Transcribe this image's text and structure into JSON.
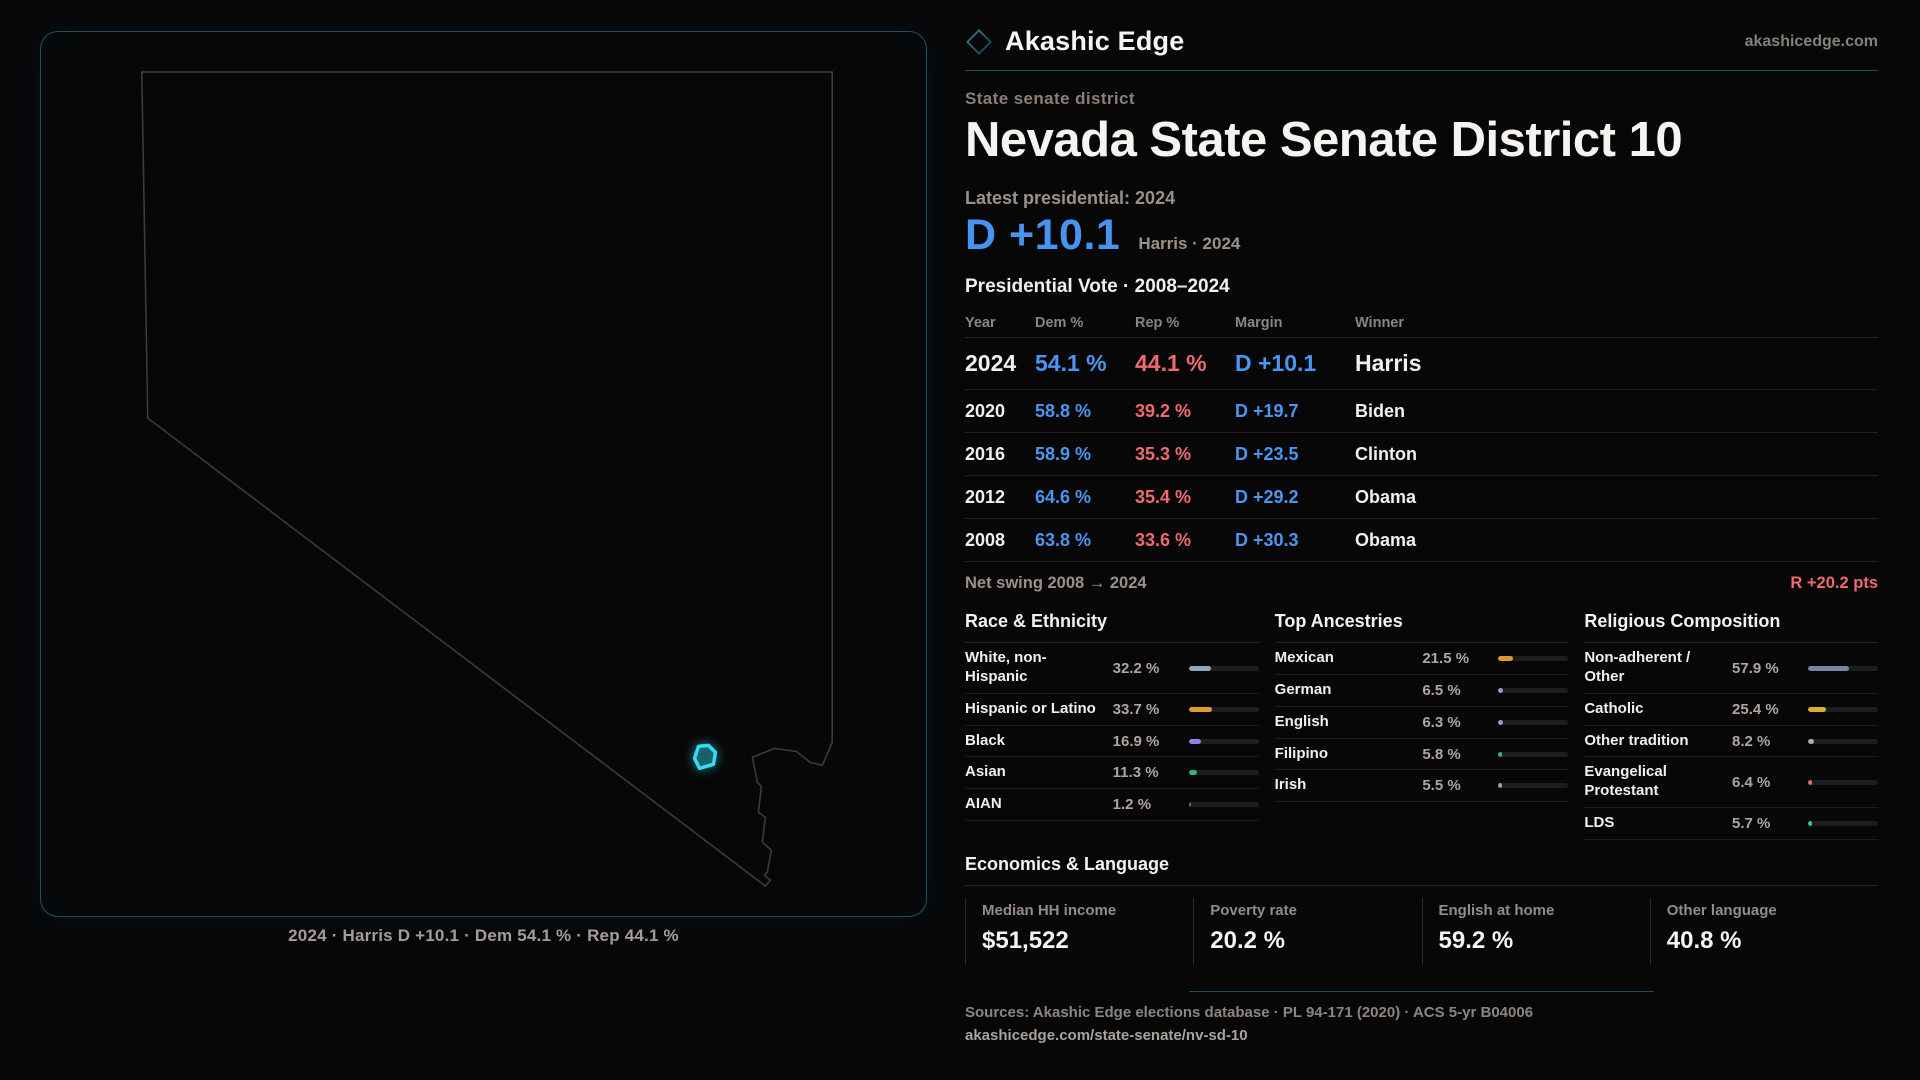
{
  "brand": {
    "name": "Akashic Edge",
    "domain": "akashicedge.com",
    "logo_icon": "diamond-icon"
  },
  "page": {
    "kicker": "State senate district",
    "title": "Nevada State Senate District 10",
    "latest_label": "Latest presidential: 2024",
    "headline_margin": "D +10.1",
    "headline_context": "Harris · 2024"
  },
  "map": {
    "caption": "2024 · Harris D +10.1 · Dem 54.1 % · Rep 44.1 %",
    "district_color": "#35dcf2",
    "outline_color": "#3b3b3e",
    "panel_border_color": "#1d515e"
  },
  "vote_table": {
    "title": "Presidential Vote · 2008–2024",
    "columns": [
      "Year",
      "Dem %",
      "Rep %",
      "Margin",
      "Winner"
    ],
    "rows": [
      {
        "year": "2024",
        "dem": "54.1 %",
        "rep": "44.1 %",
        "margin": "D +10.1",
        "winner": "Harris",
        "emphasis": true
      },
      {
        "year": "2020",
        "dem": "58.8 %",
        "rep": "39.2 %",
        "margin": "D +19.7",
        "winner": "Biden",
        "emphasis": false
      },
      {
        "year": "2016",
        "dem": "58.9 %",
        "rep": "35.3 %",
        "margin": "D +23.5",
        "winner": "Clinton",
        "emphasis": false
      },
      {
        "year": "2012",
        "dem": "64.6 %",
        "rep": "35.4 %",
        "margin": "D +29.2",
        "winner": "Obama",
        "emphasis": false
      },
      {
        "year": "2008",
        "dem": "63.8 %",
        "rep": "33.6 %",
        "margin": "D +30.3",
        "winner": "Obama",
        "emphasis": false
      }
    ],
    "net_swing_label": "Net swing 2008 → 2024",
    "net_swing_value": "R +20.2 pts"
  },
  "demographics": [
    {
      "title": "Race & Ethnicity",
      "rows": [
        {
          "label": "White, non-Hispanic",
          "value": "32.2 %",
          "pct": 32.2,
          "color": "#8fa6bf"
        },
        {
          "label": "Hispanic or Latino",
          "value": "33.7 %",
          "pct": 33.7,
          "color": "#dd9a2e"
        },
        {
          "label": "Black",
          "value": "16.9 %",
          "pct": 16.9,
          "color": "#8f7fe8"
        },
        {
          "label": "Asian",
          "value": "11.3 %",
          "pct": 11.3,
          "color": "#31b389"
        },
        {
          "label": "AIAN",
          "value": "1.2 %",
          "pct": 1.2,
          "color": "#a35b25"
        }
      ]
    },
    {
      "title": "Top Ancestries",
      "rows": [
        {
          "label": "Mexican",
          "value": "21.5 %",
          "pct": 21.5,
          "color": "#dd9a2e"
        },
        {
          "label": "German",
          "value": "6.5 %",
          "pct": 6.5,
          "color": "#8fa6bf"
        },
        {
          "label": "English",
          "value": "6.3 %",
          "pct": 6.3,
          "color": "#8fa6bf"
        },
        {
          "label": "Filipino",
          "value": "5.8 %",
          "pct": 5.8,
          "color": "#31b389"
        },
        {
          "label": "Irish",
          "value": "5.5 %",
          "pct": 5.5,
          "color": "#8fa6bf"
        }
      ]
    },
    {
      "title": "Religious Composition",
      "rows": [
        {
          "label": "Non-adherent / Other",
          "value": "57.9 %",
          "pct": 57.9,
          "color": "#76879d"
        },
        {
          "label": "Catholic",
          "value": "25.4 %",
          "pct": 25.4,
          "color": "#ddaf2e"
        },
        {
          "label": "Other tradition",
          "value": "8.2 %",
          "pct": 8.2,
          "color": "#a8adb3"
        },
        {
          "label": "Evangelical Protestant",
          "value": "6.4 %",
          "pct": 6.4,
          "color": "#e06c6c"
        },
        {
          "label": "LDS",
          "value": "5.7 %",
          "pct": 5.7,
          "color": "#2fc4ad"
        }
      ]
    }
  ],
  "economics": {
    "title": "Economics & Language",
    "stats": [
      {
        "label": "Median HH income",
        "value": "$51,522"
      },
      {
        "label": "Poverty rate",
        "value": "20.2 %"
      },
      {
        "label": "English at home",
        "value": "59.2 %"
      },
      {
        "label": "Other language",
        "value": "40.8 %"
      }
    ]
  },
  "footer": {
    "sources": "Sources: Akashic Edge elections database · PL 94-171 (2020) · ACS 5-yr B04006",
    "permalink": "akashicedge.com/state-senate/nv-sd-10"
  },
  "colors": {
    "background": "#070708",
    "dem_blue": "#4b96f0",
    "rep_red": "#ee6a6e",
    "accent_teal": "#35dcf2",
    "muted_text": "#9c9189"
  }
}
